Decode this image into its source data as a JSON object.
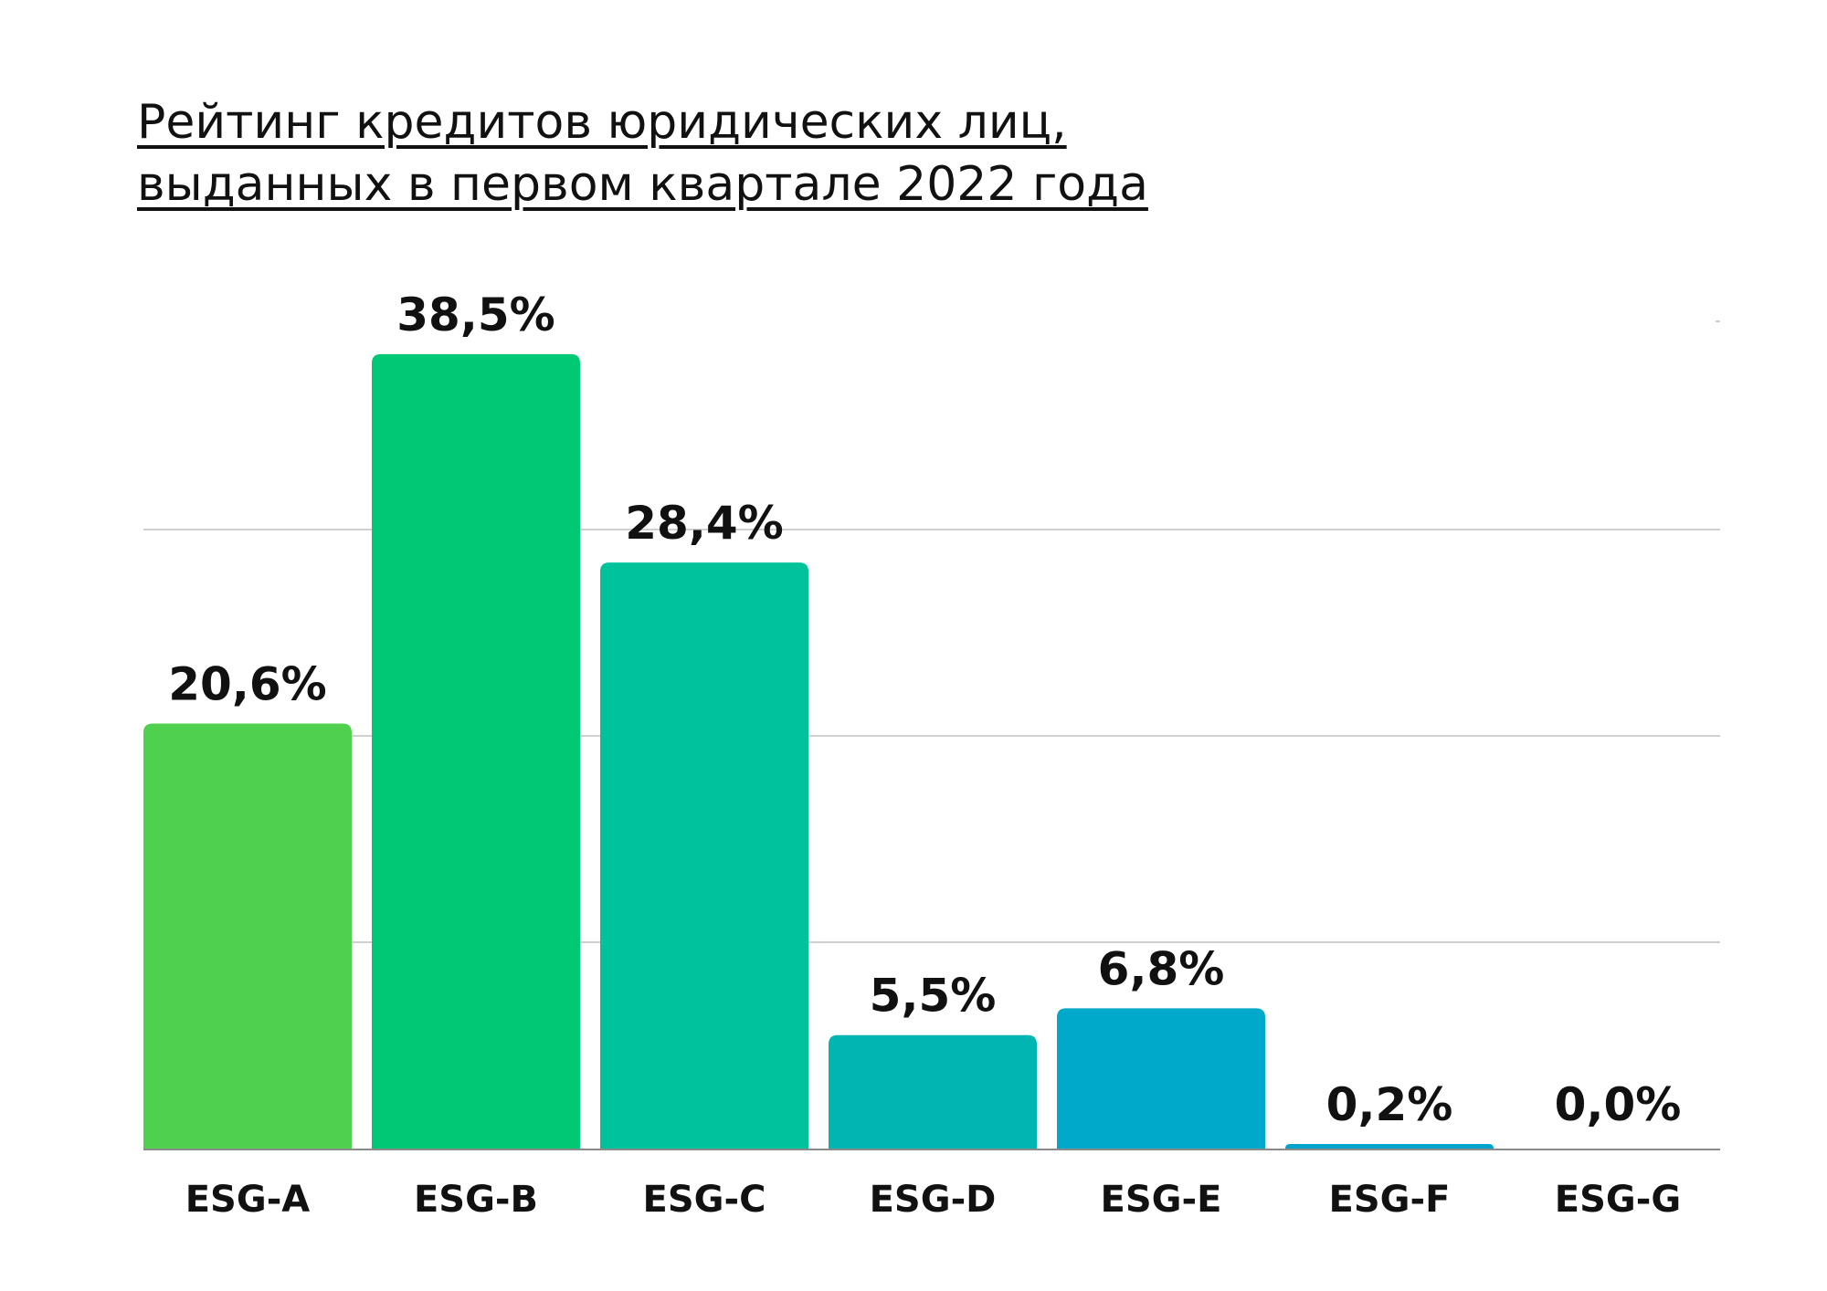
{
  "chart_data": {
    "type": "bar",
    "title_lines": [
      "Рейтинг кредитов юридических лиц,",
      "выданных в первом квартале 2022 года"
    ],
    "xlabel": "",
    "ylabel": "",
    "categories": [
      "ESG-A",
      "ESG-B",
      "ESG-C",
      "ESG-D",
      "ESG-E",
      "ESG-F",
      "ESG-G"
    ],
    "values": [
      20.6,
      38.5,
      28.4,
      5.5,
      6.8,
      0.2,
      0.0
    ],
    "value_labels": [
      "20,6%",
      "38,5%",
      "28,4%",
      "5,5%",
      "6,8%",
      "0,2%",
      "0,0%"
    ],
    "bar_colors": [
      "#4fd14f",
      "#00c875",
      "#00c39b",
      "#00b5b2",
      "#00a9c9",
      "#00a3cc",
      "#00a3cc"
    ],
    "ylim": [
      0,
      40
    ],
    "grid": true,
    "legend": "none"
  }
}
